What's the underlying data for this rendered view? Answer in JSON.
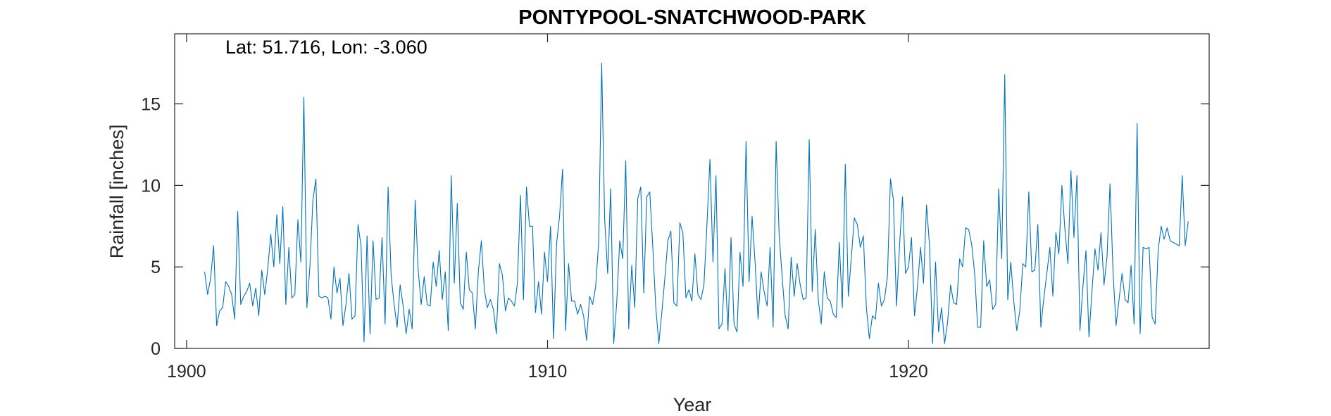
{
  "chart_data": {
    "type": "line",
    "title": "PONTYPOOL-SNATCHWOOD-PARK",
    "annotation": "Lat: 51.716, Lon: -3.060",
    "xlabel": "Year",
    "ylabel": "Rainfall [inches]",
    "xlim": [
      1899.67,
      1928.33
    ],
    "ylim": [
      0,
      19.3
    ],
    "xticks": [
      1900,
      1910,
      1920
    ],
    "xtick_labels": [
      "1900",
      "1910",
      "1920"
    ],
    "yticks": [
      0,
      5,
      10,
      15
    ],
    "ytick_labels": [
      "0",
      "5",
      "10",
      "15"
    ],
    "grid": false,
    "line_color": "#0072BD",
    "series": [
      {
        "x_start": 1900.5,
        "x_step": 0.08333333,
        "values": [
          4.7,
          3.3,
          4.3,
          6.3,
          1.4,
          2.3,
          2.5,
          4.1,
          3.8,
          3.3,
          1.8,
          8.4,
          2.7,
          3.2,
          3.5,
          4.0,
          2.6,
          3.7,
          2.0,
          4.8,
          3.3,
          4.9,
          7.0,
          5.0,
          8.2,
          5.2,
          8.7,
          2.7,
          6.2,
          3.1,
          3.3,
          7.9,
          5.3,
          15.4,
          2.5,
          5.0,
          9.1,
          10.4,
          3.2,
          3.1,
          3.2,
          3.1,
          1.8,
          5.0,
          3.4,
          4.3,
          1.4,
          2.7,
          4.6,
          1.8,
          2.0,
          7.6,
          6.3,
          0.4,
          6.9,
          0.9,
          6.6,
          3.0,
          3.1,
          6.8,
          1.5,
          9.9,
          4.5,
          2.7,
          1.3,
          3.9,
          2.6,
          0.9,
          2.4,
          1.2,
          9.1,
          4.8,
          2.7,
          4.4,
          2.7,
          2.6,
          5.3,
          3.8,
          6.0,
          3.0,
          4.7,
          1.1,
          10.6,
          4.0,
          8.9,
          2.8,
          2.4,
          5.9,
          3.6,
          3.4,
          1.2,
          4.7,
          6.6,
          3.6,
          2.5,
          3.0,
          2.4,
          0.9,
          5.2,
          4.5,
          2.3,
          3.1,
          2.9,
          2.6,
          4.0,
          9.4,
          3.0,
          9.9,
          7.5,
          7.5,
          2.2,
          4.1,
          2.1,
          5.9,
          4.1,
          7.5,
          0.6,
          6.4,
          8.1,
          11.0,
          1.1,
          5.2,
          2.9,
          2.9,
          2.1,
          2.7,
          2.0,
          0.5,
          3.2,
          2.7,
          3.8,
          6.5,
          17.5,
          7.9,
          4.6,
          9.8,
          0.3,
          2.8,
          6.6,
          5.5,
          11.5,
          1.2,
          5.1,
          2.5,
          9.2,
          9.9,
          3.4,
          9.3,
          9.6,
          6.2,
          2.5,
          0.3,
          2.2,
          4.3,
          6.6,
          7.2,
          2.8,
          2.6,
          7.7,
          7.1,
          3.1,
          3.6,
          2.9,
          5.8,
          3.3,
          3.0,
          3.9,
          7.6,
          11.6,
          5.3,
          10.6,
          1.2,
          1.5,
          4.9,
          1.1,
          6.8,
          1.5,
          1.0,
          5.9,
          3.8,
          12.7,
          4.1,
          8.1,
          5.3,
          1.8,
          4.7,
          3.5,
          2.6,
          6.2,
          1.3,
          12.7,
          7.0,
          4.4,
          2.0,
          1.2,
          5.6,
          3.2,
          5.2,
          3.9,
          3.0,
          3.1,
          12.8,
          3.5,
          7.3,
          3.0,
          1.5,
          4.7,
          3.1,
          2.9,
          2.1,
          1.9,
          6.5,
          2.5,
          11.3,
          3.2,
          5.6,
          8.0,
          7.6,
          6.2,
          6.9,
          2.5,
          0.6,
          2.0,
          1.8,
          4.0,
          2.6,
          3.0,
          4.4,
          10.4,
          9.1,
          2.6,
          6.2,
          9.3,
          4.6,
          5.0,
          6.8,
          2.0,
          3.8,
          6.2,
          4.0,
          8.8,
          6.3,
          0.3,
          5.3,
          1.0,
          2.5,
          0.3,
          1.6,
          3.9,
          2.8,
          2.7,
          5.5,
          5.0,
          7.4,
          7.3,
          6.4,
          4.6,
          1.3,
          1.3,
          6.6,
          3.8,
          4.2,
          2.4,
          2.7,
          9.8,
          5.5,
          16.8,
          3.0,
          5.3,
          2.9,
          1.1,
          2.3,
          5.2,
          5.0,
          9.6,
          4.7,
          4.8,
          7.6,
          1.3,
          3.1,
          4.6,
          6.2,
          3.2,
          7.1,
          5.8,
          10.0,
          7.3,
          5.2,
          10.9,
          6.8,
          10.6,
          1.1,
          3.8,
          6.0,
          0.7,
          3.5,
          6.1,
          4.8,
          7.1,
          3.9,
          5.6,
          10.1,
          4.7,
          1.4,
          3.0,
          4.6,
          3.0,
          2.8,
          5.1,
          1.5,
          13.8,
          0.9,
          6.2,
          6.1,
          6.2,
          1.9,
          1.5,
          6.0,
          7.5,
          6.7,
          7.4,
          6.6,
          6.5,
          6.4,
          6.3,
          10.6,
          6.3,
          7.8
        ]
      }
    ]
  }
}
